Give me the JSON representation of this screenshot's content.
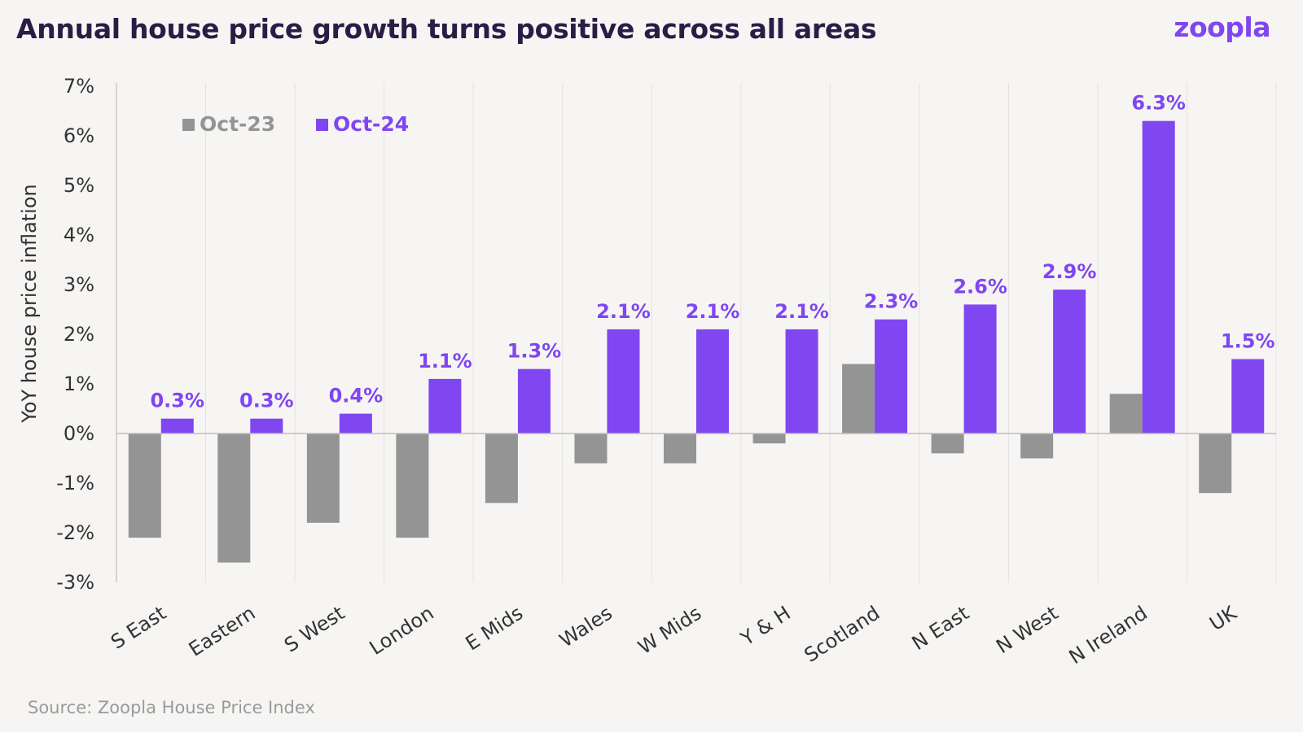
{
  "title": "Annual house price growth turns positive across all areas",
  "brand": "zoopla",
  "source": "Source: Zoopla House Price Index",
  "colors": {
    "background": "#f6f5f3",
    "oct23": "#949494",
    "oct24": "#8046f1",
    "title": "#2b1c45",
    "grid": "#e2e2e2",
    "axis": "#c8c8c8"
  },
  "chart_data": {
    "type": "bar",
    "title": "Annual house price growth turns positive across all areas",
    "xlabel": "",
    "ylabel": "YoY house price inflation",
    "ylim": [
      -3,
      7
    ],
    "yticks": [
      -3,
      -2,
      -1,
      0,
      1,
      2,
      3,
      4,
      5,
      6,
      7
    ],
    "ytick_labels": [
      "-3%",
      "-2%",
      "-1%",
      "0%",
      "1%",
      "2%",
      "3%",
      "4%",
      "5%",
      "6%",
      "7%"
    ],
    "categories": [
      "S East",
      "Eastern",
      "S West",
      "London",
      "E Mids",
      "Wales",
      "W Mids",
      "Y & H",
      "Scotland",
      "N East",
      "N West",
      "N Ireland",
      "UK"
    ],
    "series": [
      {
        "name": "Oct-23",
        "color": "#949494",
        "values": [
          -2.1,
          -2.6,
          -1.8,
          -2.1,
          -1.4,
          -0.6,
          -0.6,
          -0.2,
          1.4,
          -0.4,
          -0.5,
          0.8,
          -1.2
        ]
      },
      {
        "name": "Oct-24",
        "color": "#8046f1",
        "values": [
          0.3,
          0.3,
          0.4,
          1.1,
          1.3,
          2.1,
          2.1,
          2.1,
          2.3,
          2.6,
          2.9,
          6.3,
          1.5
        ],
        "data_labels": [
          "0.3%",
          "0.3%",
          "0.4%",
          "1.1%",
          "1.3%",
          "2.1%",
          "2.1%",
          "2.1%",
          "2.3%",
          "2.6%",
          "2.9%",
          "6.3%",
          "1.5%"
        ]
      }
    ],
    "grid": "vertical",
    "legend": "top-left"
  }
}
